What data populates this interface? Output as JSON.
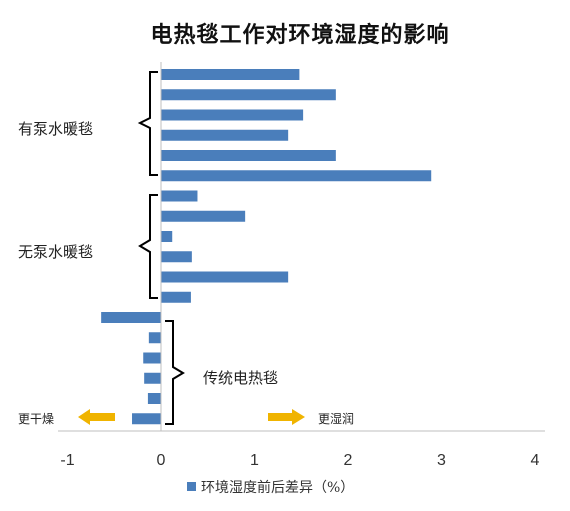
{
  "chart_data": {
    "type": "bar",
    "orientation": "horizontal",
    "title": "电热毯工作对环境湿度的影响",
    "xlabel": "",
    "ylabel": "",
    "xlim": [
      -1,
      4
    ],
    "x_ticks": [
      "-1",
      "0",
      "1",
      "2",
      "3",
      "4"
    ],
    "grid": false,
    "legend_position": "bottom",
    "series": [
      {
        "name": "环境湿度前后差异（%）",
        "color": "#4A7EBB",
        "values": [
          1.48,
          1.87,
          1.52,
          1.36,
          1.87,
          2.89,
          0.39,
          0.9,
          0.12,
          0.33,
          1.36,
          0.32,
          -0.64,
          -0.13,
          -0.19,
          -0.18,
          -0.14,
          -0.31
        ]
      }
    ],
    "groups": [
      {
        "label": "有泵水暖毯",
        "count": 6
      },
      {
        "label": "无泵水暖毯",
        "count": 6
      },
      {
        "label": "传统电热毯",
        "count": 6
      }
    ],
    "annotations": {
      "drier": "更干燥",
      "wetter": "更湿润",
      "arrow_color": "#F0B400"
    }
  }
}
